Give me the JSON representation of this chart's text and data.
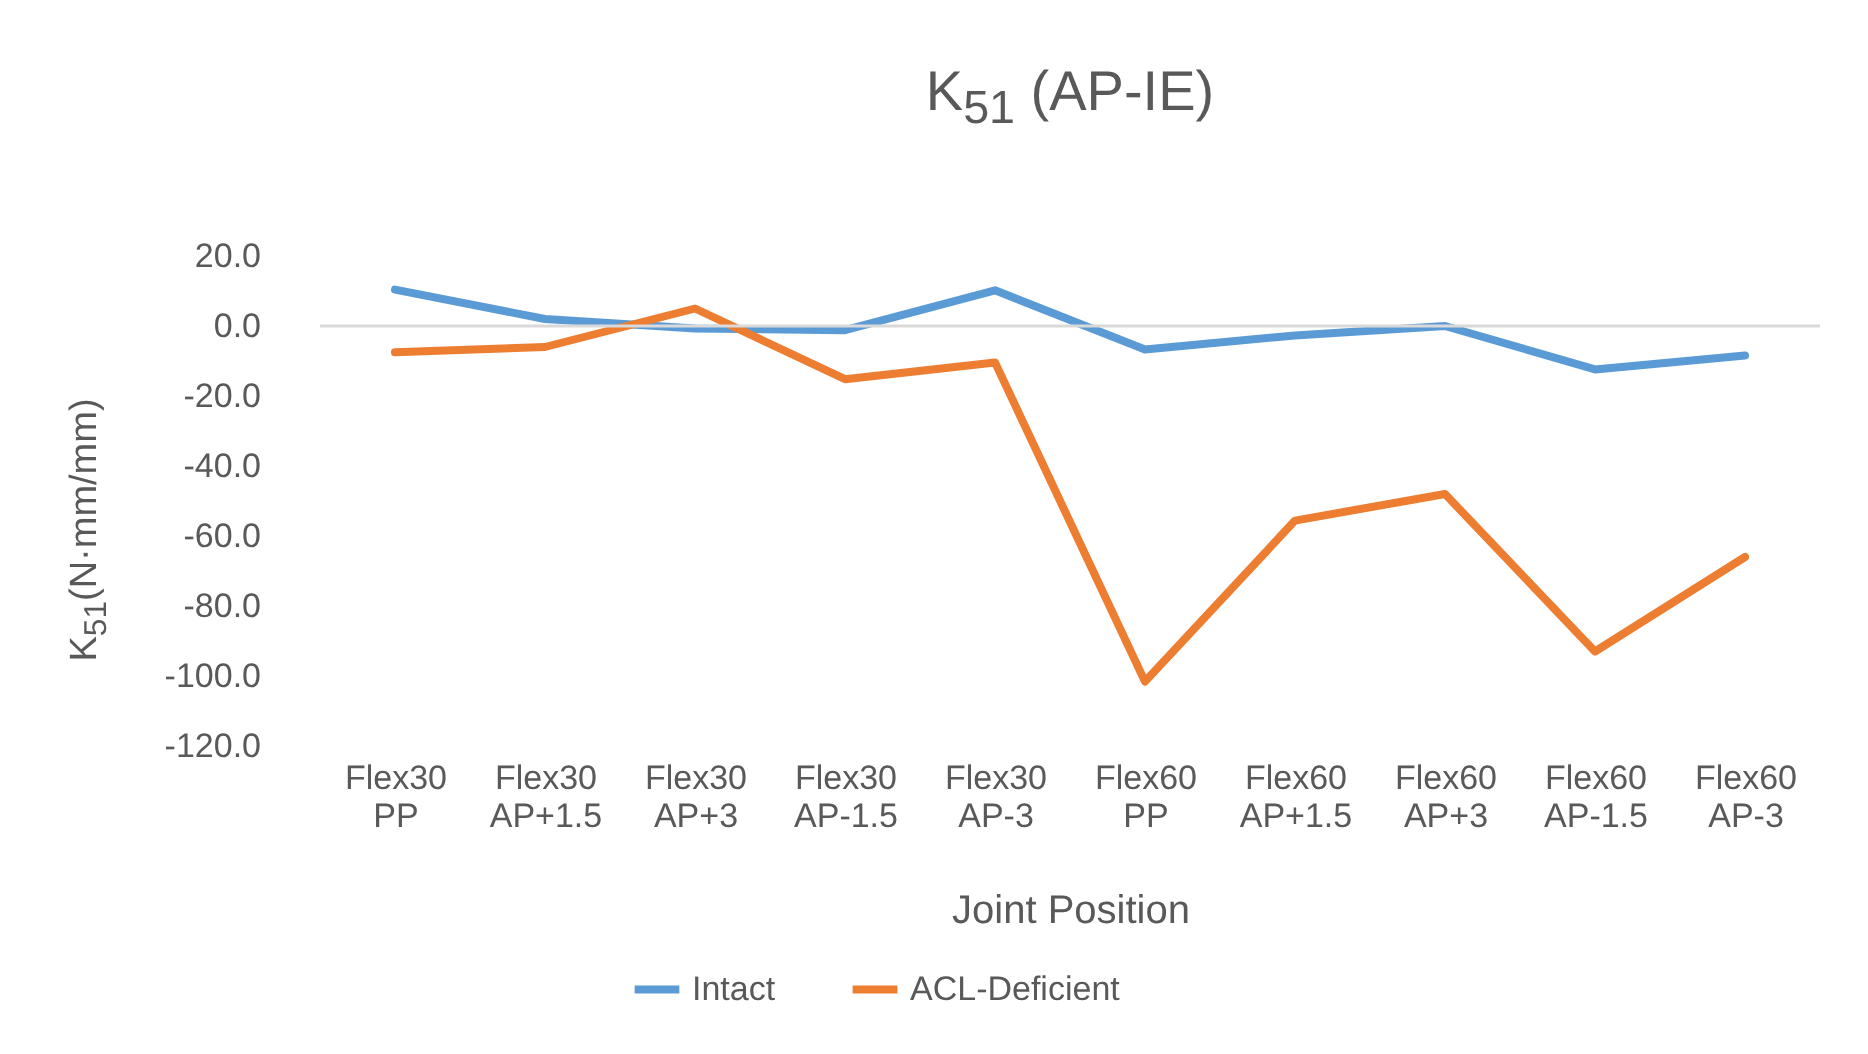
{
  "chart_data": {
    "type": "line",
    "title": "K$_{51}$ (AP-IE)",
    "xlabel": "Joint Position",
    "ylabel": "K$_{51}$(N·mm/mm)",
    "categories": [
      "Flex30 PP",
      "Flex30 AP+1.5",
      "Flex30 AP+3",
      "Flex30 AP-1.5",
      "Flex30 AP-3",
      "Flex60 PP",
      "Flex60 AP+1.5",
      "Flex60 AP+3",
      "Flex60 AP-1.5",
      "Flex60 AP-3"
    ],
    "series": [
      {
        "name": "Intact",
        "color": "#5b9bd5",
        "values": [
          10.4,
          2,
          -0.7,
          -1.2,
          10.2,
          -6.7,
          -2.7,
          0,
          -12.4,
          -8.4
        ]
      },
      {
        "name": "ACL-Deficient",
        "color": "#ed7d31",
        "values": [
          -7.5,
          -6,
          5,
          -15.2,
          -10.4,
          -101.6,
          -55.6,
          -48,
          -93,
          -66
        ]
      }
    ],
    "ylim": [
      -120,
      20
    ],
    "yticks": [
      {
        "value": 20,
        "label": "20.0"
      },
      {
        "value": 0,
        "label": "0.0"
      },
      {
        "value": -20,
        "label": "-20.0"
      },
      {
        "value": -40,
        "label": "-40.0"
      },
      {
        "value": -60,
        "label": "-60.0"
      },
      {
        "value": -80,
        "label": "-80.0"
      },
      {
        "value": -100,
        "label": "-100.0"
      },
      {
        "value": -120,
        "label": "-120.0"
      }
    ],
    "grid": false,
    "ref_lines": [
      {
        "axis": "y",
        "value": 0,
        "color": "#d9d9d9"
      }
    ],
    "legend": "bottom",
    "marker": "none",
    "line_style": "solid"
  }
}
